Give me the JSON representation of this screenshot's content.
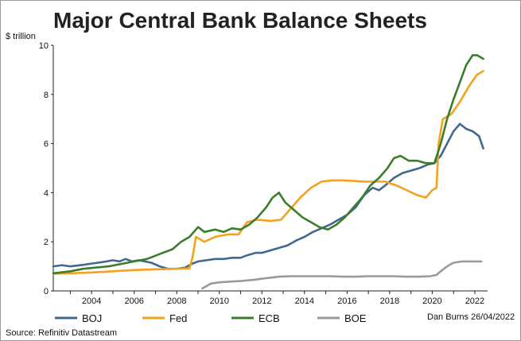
{
  "chart_data": {
    "type": "line",
    "title": "Major Central Bank Balance Sheets",
    "ylabel": "$ trillion",
    "xlabel": "",
    "ylim": [
      0,
      10
    ],
    "xlim": [
      2002.2,
      2022.6
    ],
    "yticks": [
      "0",
      "2",
      "4",
      "6",
      "8",
      "10"
    ],
    "xticks": [
      "2004",
      "2006",
      "2008",
      "2010",
      "2012",
      "2014",
      "2016",
      "2018",
      "2020",
      "2022"
    ],
    "grid": false,
    "legend_position": "bottom",
    "credit": "Dan Burns 26/04/2022",
    "source": "Source: Refinitiv Datastream",
    "series": [
      {
        "name": "BOJ",
        "color": "#41688f",
        "points": [
          [
            2002.2,
            1.0
          ],
          [
            2002.6,
            1.05
          ],
          [
            2003.0,
            1.0
          ],
          [
            2003.5,
            1.05
          ],
          [
            2003.9,
            1.1
          ],
          [
            2004.3,
            1.15
          ],
          [
            2004.7,
            1.2
          ],
          [
            2005.0,
            1.25
          ],
          [
            2005.3,
            1.2
          ],
          [
            2005.6,
            1.3
          ],
          [
            2005.9,
            1.2
          ],
          [
            2006.2,
            1.25
          ],
          [
            2006.5,
            1.2
          ],
          [
            2006.8,
            1.15
          ],
          [
            2007.2,
            1.0
          ],
          [
            2007.6,
            0.9
          ],
          [
            2008.0,
            0.9
          ],
          [
            2008.4,
            0.95
          ],
          [
            2008.7,
            1.1
          ],
          [
            2009.0,
            1.2
          ],
          [
            2009.4,
            1.25
          ],
          [
            2009.8,
            1.3
          ],
          [
            2010.2,
            1.3
          ],
          [
            2010.6,
            1.35
          ],
          [
            2011.0,
            1.35
          ],
          [
            2011.3,
            1.45
          ],
          [
            2011.7,
            1.55
          ],
          [
            2012.0,
            1.55
          ],
          [
            2012.4,
            1.65
          ],
          [
            2012.8,
            1.75
          ],
          [
            2013.2,
            1.85
          ],
          [
            2013.6,
            2.05
          ],
          [
            2014.0,
            2.2
          ],
          [
            2014.4,
            2.4
          ],
          [
            2014.8,
            2.55
          ],
          [
            2015.2,
            2.7
          ],
          [
            2015.6,
            2.9
          ],
          [
            2016.0,
            3.1
          ],
          [
            2016.4,
            3.4
          ],
          [
            2016.8,
            3.9
          ],
          [
            2017.2,
            4.2
          ],
          [
            2017.5,
            4.1
          ],
          [
            2017.8,
            4.3
          ],
          [
            2018.2,
            4.6
          ],
          [
            2018.6,
            4.8
          ],
          [
            2019.0,
            4.9
          ],
          [
            2019.4,
            5.0
          ],
          [
            2019.8,
            5.15
          ],
          [
            2020.1,
            5.2
          ],
          [
            2020.4,
            5.5
          ],
          [
            2020.7,
            6.0
          ],
          [
            2021.0,
            6.5
          ],
          [
            2021.3,
            6.8
          ],
          [
            2021.6,
            6.6
          ],
          [
            2021.9,
            6.5
          ],
          [
            2022.2,
            6.3
          ],
          [
            2022.4,
            5.8
          ]
        ]
      },
      {
        "name": "Fed",
        "color": "#f4a21e",
        "points": [
          [
            2002.2,
            0.7
          ],
          [
            2003.0,
            0.72
          ],
          [
            2004.0,
            0.75
          ],
          [
            2005.0,
            0.8
          ],
          [
            2006.0,
            0.85
          ],
          [
            2007.0,
            0.88
          ],
          [
            2008.0,
            0.9
          ],
          [
            2008.6,
            0.92
          ],
          [
            2008.75,
            1.4
          ],
          [
            2008.9,
            2.2
          ],
          [
            2009.3,
            2.0
          ],
          [
            2009.8,
            2.2
          ],
          [
            2010.4,
            2.3
          ],
          [
            2010.9,
            2.3
          ],
          [
            2011.3,
            2.8
          ],
          [
            2011.8,
            2.9
          ],
          [
            2012.4,
            2.85
          ],
          [
            2012.9,
            2.9
          ],
          [
            2013.3,
            3.3
          ],
          [
            2013.8,
            3.8
          ],
          [
            2014.3,
            4.2
          ],
          [
            2014.8,
            4.45
          ],
          [
            2015.3,
            4.5
          ],
          [
            2015.8,
            4.5
          ],
          [
            2016.3,
            4.48
          ],
          [
            2016.8,
            4.45
          ],
          [
            2017.3,
            4.45
          ],
          [
            2017.8,
            4.45
          ],
          [
            2018.3,
            4.3
          ],
          [
            2018.8,
            4.1
          ],
          [
            2019.3,
            3.9
          ],
          [
            2019.7,
            3.8
          ],
          [
            2020.0,
            4.1
          ],
          [
            2020.2,
            4.2
          ],
          [
            2020.3,
            6.0
          ],
          [
            2020.5,
            7.0
          ],
          [
            2020.9,
            7.2
          ],
          [
            2021.3,
            7.7
          ],
          [
            2021.7,
            8.3
          ],
          [
            2022.1,
            8.8
          ],
          [
            2022.4,
            8.95
          ]
        ]
      },
      {
        "name": "ECB",
        "color": "#3c7d2b",
        "points": [
          [
            2002.2,
            0.72
          ],
          [
            2003.0,
            0.8
          ],
          [
            2003.6,
            0.9
          ],
          [
            2004.2,
            0.95
          ],
          [
            2004.8,
            1.0
          ],
          [
            2005.4,
            1.1
          ],
          [
            2006.0,
            1.2
          ],
          [
            2006.6,
            1.3
          ],
          [
            2007.2,
            1.5
          ],
          [
            2007.8,
            1.7
          ],
          [
            2008.2,
            2.0
          ],
          [
            2008.6,
            2.2
          ],
          [
            2009.0,
            2.6
          ],
          [
            2009.3,
            2.4
          ],
          [
            2009.8,
            2.5
          ],
          [
            2010.2,
            2.4
          ],
          [
            2010.6,
            2.55
          ],
          [
            2011.0,
            2.5
          ],
          [
            2011.4,
            2.7
          ],
          [
            2011.8,
            3.0
          ],
          [
            2012.2,
            3.4
          ],
          [
            2012.5,
            3.8
          ],
          [
            2012.8,
            4.0
          ],
          [
            2013.1,
            3.6
          ],
          [
            2013.5,
            3.3
          ],
          [
            2013.9,
            3.0
          ],
          [
            2014.3,
            2.8
          ],
          [
            2014.7,
            2.6
          ],
          [
            2015.1,
            2.5
          ],
          [
            2015.5,
            2.7
          ],
          [
            2015.9,
            3.0
          ],
          [
            2016.3,
            3.4
          ],
          [
            2016.7,
            3.8
          ],
          [
            2017.1,
            4.3
          ],
          [
            2017.5,
            4.6
          ],
          [
            2017.9,
            5.0
          ],
          [
            2018.2,
            5.4
          ],
          [
            2018.5,
            5.5
          ],
          [
            2018.9,
            5.3
          ],
          [
            2019.3,
            5.3
          ],
          [
            2019.7,
            5.2
          ],
          [
            2020.1,
            5.2
          ],
          [
            2020.4,
            6.0
          ],
          [
            2020.7,
            7.0
          ],
          [
            2021.0,
            7.8
          ],
          [
            2021.3,
            8.5
          ],
          [
            2021.6,
            9.2
          ],
          [
            2021.9,
            9.6
          ],
          [
            2022.1,
            9.6
          ],
          [
            2022.4,
            9.45
          ]
        ]
      },
      {
        "name": "BOE",
        "color": "#9a9a9a",
        "points": [
          [
            2009.2,
            0.1
          ],
          [
            2009.6,
            0.3
          ],
          [
            2010.0,
            0.35
          ],
          [
            2010.5,
            0.38
          ],
          [
            2011.0,
            0.4
          ],
          [
            2011.6,
            0.45
          ],
          [
            2012.2,
            0.52
          ],
          [
            2012.8,
            0.58
          ],
          [
            2013.4,
            0.6
          ],
          [
            2014.0,
            0.6
          ],
          [
            2014.6,
            0.6
          ],
          [
            2015.2,
            0.6
          ],
          [
            2015.8,
            0.58
          ],
          [
            2016.4,
            0.58
          ],
          [
            2017.0,
            0.6
          ],
          [
            2017.6,
            0.6
          ],
          [
            2018.2,
            0.6
          ],
          [
            2018.8,
            0.58
          ],
          [
            2019.4,
            0.58
          ],
          [
            2019.9,
            0.6
          ],
          [
            2020.2,
            0.65
          ],
          [
            2020.4,
            0.8
          ],
          [
            2020.7,
            1.0
          ],
          [
            2021.0,
            1.15
          ],
          [
            2021.4,
            1.2
          ],
          [
            2021.8,
            1.2
          ],
          [
            2022.1,
            1.2
          ],
          [
            2022.3,
            1.2
          ]
        ]
      }
    ]
  }
}
